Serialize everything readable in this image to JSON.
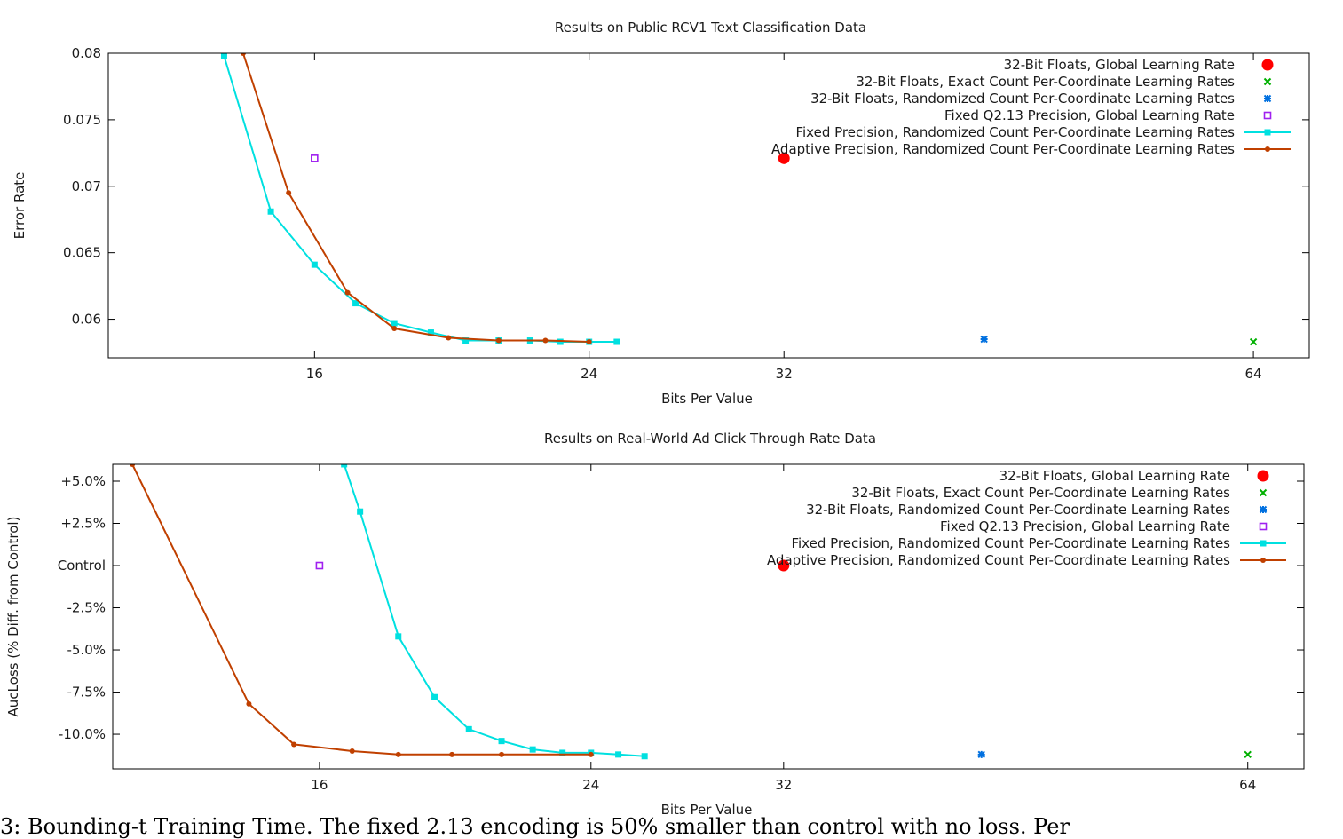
{
  "chart_data": [
    {
      "type": "line",
      "title": "Results on Public RCV1 Text Classification Data",
      "xlabel": "Bits Per Value",
      "ylabel": "Error Rate",
      "x_scale": "log2",
      "xlim": [
        11.8,
        69.5
      ],
      "ylim": [
        0.0571,
        0.08
      ],
      "xticks": [
        16,
        24,
        32,
        64
      ],
      "xtick_labels": [
        "16",
        "24",
        "32",
        "64"
      ],
      "yticks": [
        0.06,
        0.065,
        0.07,
        0.075,
        0.08
      ],
      "ytick_labels": [
        "0.06",
        "0.065",
        "0.07",
        "0.075",
        "0.08"
      ],
      "legend_position": "top-right",
      "series": [
        {
          "name": "32-Bit Floats, Global Learning Rate",
          "kind": "point",
          "marker": "filled-circle",
          "color": "#ff0000",
          "points": [
            [
              32,
              0.0721
            ]
          ]
        },
        {
          "name": "32-Bit Floats, Exact Count Per-Coordinate Learning Rates",
          "kind": "point",
          "marker": "x",
          "color": "#00b000",
          "points": [
            [
              64,
              0.0583
            ]
          ]
        },
        {
          "name": "32-Bit Floats, Randomized Count Per-Coordinate Learning Rates",
          "kind": "point",
          "marker": "star",
          "color": "#0070e0",
          "points": [
            [
              43,
              0.0585
            ]
          ]
        },
        {
          "name": "Fixed Q2.13 Precision, Global Learning Rate",
          "kind": "point",
          "marker": "open-square",
          "color": "#a020f0",
          "points": [
            [
              16,
              0.0721
            ]
          ]
        },
        {
          "name": "Fixed Precision, Randomized Count Per-Coordinate Learning Rates",
          "kind": "line",
          "marker": "filled-square",
          "color": "#00e0e0",
          "points": [
            [
              14,
              0.0798
            ],
            [
              15,
              0.0681
            ],
            [
              16,
              0.0641
            ],
            [
              17,
              0.0612
            ],
            [
              18,
              0.0597
            ],
            [
              19,
              0.059
            ],
            [
              20,
              0.0584
            ],
            [
              21,
              0.0584
            ],
            [
              22,
              0.0584
            ],
            [
              23,
              0.0583
            ],
            [
              24,
              0.0583
            ],
            [
              25,
              0.0583
            ]
          ]
        },
        {
          "name": "Adaptive Precision, Randomized Count Per-Coordinate Learning Rates",
          "kind": "line",
          "marker": "filled-circle",
          "color": "#c04000",
          "points": [
            [
              14.4,
              0.08
            ],
            [
              15.4,
              0.0695
            ],
            [
              16.8,
              0.062
            ],
            [
              18,
              0.0593
            ],
            [
              19.5,
              0.0586
            ],
            [
              21,
              0.0584
            ],
            [
              22.5,
              0.0584
            ],
            [
              24,
              0.0583
            ]
          ]
        }
      ]
    },
    {
      "type": "line",
      "title": "Results on Real-World Ad Click Through Rate Data",
      "xlabel": "Bits Per Value",
      "ylabel": "AucLoss (% Diff. from Control)",
      "x_scale": "log2",
      "xlim": [
        11.75,
        69.6
      ],
      "ylim": [
        -12.05,
        6.0
      ],
      "xticks": [
        16,
        24,
        32,
        64
      ],
      "xtick_labels": [
        "16",
        "24",
        "32",
        "64"
      ],
      "yticks": [
        5.0,
        2.5,
        0.0,
        -2.5,
        -5.0,
        -7.5,
        -10.0
      ],
      "ytick_labels": [
        "+5.0%",
        "+2.5%",
        "Control",
        "-2.5%",
        "-5.0%",
        "-7.5%",
        "-10.0%"
      ],
      "legend_position": "top-right",
      "series": [
        {
          "name": "32-Bit Floats, Global Learning Rate",
          "kind": "point",
          "marker": "filled-circle",
          "color": "#ff0000",
          "points": [
            [
              32,
              0.0
            ]
          ]
        },
        {
          "name": "32-Bit Floats, Exact Count Per-Coordinate Learning Rates",
          "kind": "point",
          "marker": "x",
          "color": "#00b000",
          "points": [
            [
              64,
              -11.2
            ]
          ]
        },
        {
          "name": "32-Bit Floats, Randomized Count Per-Coordinate Learning Rates",
          "kind": "point",
          "marker": "star",
          "color": "#0070e0",
          "points": [
            [
              43,
              -11.2
            ]
          ]
        },
        {
          "name": "Fixed Q2.13 Precision, Global Learning Rate",
          "kind": "point",
          "marker": "open-square",
          "color": "#a020f0",
          "points": [
            [
              16,
              0.0
            ]
          ]
        },
        {
          "name": "Fixed Precision, Randomized Count Per-Coordinate Learning Rates",
          "kind": "line",
          "marker": "filled-square",
          "color": "#00e0e0",
          "points": [
            [
              16.6,
              6.0
            ],
            [
              17,
              3.2
            ],
            [
              18,
              -4.2
            ],
            [
              19,
              -7.8
            ],
            [
              20,
              -9.7
            ],
            [
              21,
              -10.4
            ],
            [
              22,
              -10.9
            ],
            [
              23,
              -11.1
            ],
            [
              24,
              -11.1
            ],
            [
              25,
              -11.2
            ],
            [
              26,
              -11.3
            ]
          ]
        },
        {
          "name": "Adaptive Precision, Randomized Count Per-Coordinate Learning Rates",
          "kind": "line",
          "marker": "filled-circle",
          "color": "#c04000",
          "points": [
            [
              12.1,
              6.0
            ],
            [
              14.4,
              -8.2
            ],
            [
              15.4,
              -10.6
            ],
            [
              16.8,
              -11.0
            ],
            [
              18,
              -11.2
            ],
            [
              19.5,
              -11.2
            ],
            [
              21,
              -11.2
            ],
            [
              24,
              -11.2
            ]
          ]
        }
      ]
    }
  ],
  "caption": "3: Bounding-t Training Time. The fixed 2.13 encoding is 50% smaller than control with no loss. Per"
}
